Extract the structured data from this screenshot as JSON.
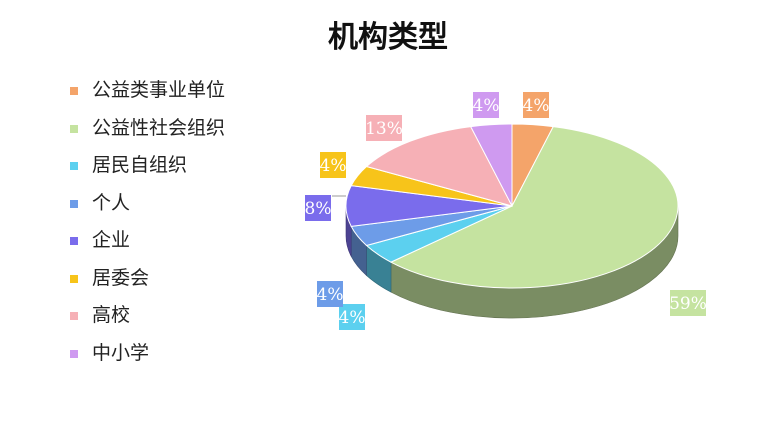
{
  "chart_data": {
    "type": "pie",
    "title": "机构类型",
    "categories": [
      "公益类事业单位",
      "公益性社会组织",
      "居民自组织",
      "个人",
      "企业",
      "居委会",
      "高校",
      "中小学"
    ],
    "values": [
      4,
      59,
      4,
      4,
      8,
      4,
      13,
      4
    ],
    "data_labels": [
      "4%",
      "59%",
      "4%",
      "4%",
      "8%",
      "4%",
      "13%",
      "4%"
    ],
    "colors": [
      "#f4a46a",
      "#c5e3a0",
      "#5cd0ef",
      "#6d9ce8",
      "#7a6cec",
      "#f7c41a",
      "#f6b0b6",
      "#cf9af0"
    ],
    "legend_position": "left",
    "style": "3d-pie"
  }
}
